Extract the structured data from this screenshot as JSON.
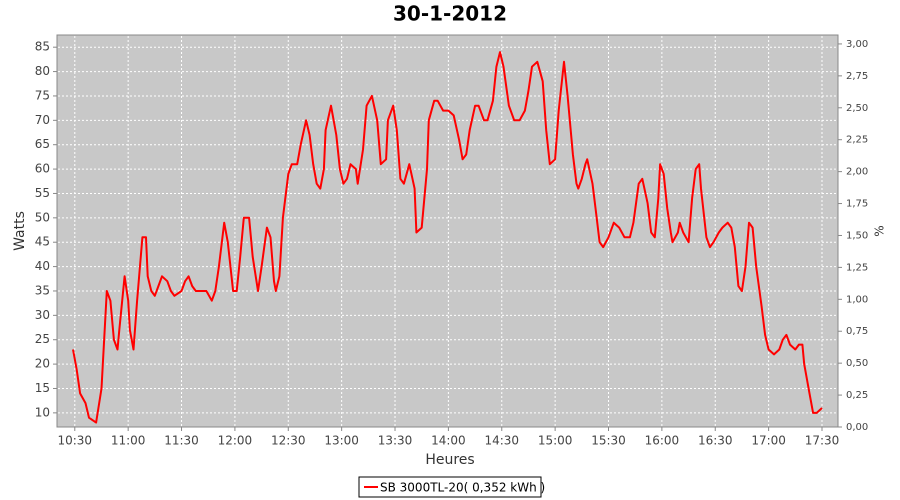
{
  "chart_data": {
    "type": "line",
    "title": "30-1-2012",
    "x_label": "Heures",
    "y_label": "Watts",
    "y2_label": "%",
    "x": [
      "10:29",
      "10:31",
      "10:33",
      "10:36",
      "10:38",
      "10:42",
      "10:45",
      "10:48",
      "10:50",
      "10:52",
      "10:54",
      "10:55",
      "10:58",
      "11:00",
      "11:01",
      "11:03",
      "11:05",
      "11:08",
      "11:10",
      "11:11",
      "11:13",
      "11:15",
      "11:17",
      "11:19",
      "11:22",
      "11:24",
      "11:26",
      "11:30",
      "11:32",
      "11:34",
      "11:36",
      "11:38",
      "11:41",
      "11:44",
      "11:47",
      "11:49",
      "11:51",
      "11:54",
      "11:56",
      "11:59",
      "12:01",
      "12:03",
      "12:05",
      "12:08",
      "12:10",
      "12:13",
      "12:15",
      "12:18",
      "12:20",
      "12:22",
      "12:23",
      "12:25",
      "12:27",
      "12:30",
      "12:32",
      "12:35",
      "12:37",
      "12:40",
      "12:42",
      "12:44",
      "12:46",
      "12:48",
      "12:50",
      "12:51",
      "12:54",
      "12:57",
      "12:59",
      "13:01",
      "13:03",
      "13:05",
      "13:08",
      "13:09",
      "13:12",
      "13:14",
      "13:17",
      "13:20",
      "13:22",
      "13:25",
      "13:26",
      "13:29",
      "13:31",
      "13:33",
      "13:35",
      "13:38",
      "13:41",
      "13:42",
      "13:45",
      "13:48",
      "13:49",
      "13:52",
      "13:54",
      "13:57",
      "14:00",
      "14:03",
      "14:06",
      "14:08",
      "14:10",
      "14:12",
      "14:15",
      "14:17",
      "14:20",
      "14:22",
      "14:25",
      "14:27",
      "14:29",
      "14:31",
      "14:34",
      "14:37",
      "14:40",
      "14:43",
      "14:45",
      "14:47",
      "14:50",
      "14:53",
      "14:55",
      "14:57",
      "15:00",
      "15:02",
      "15:05",
      "15:07",
      "15:10",
      "15:12",
      "15:13",
      "15:15",
      "15:17",
      "15:18",
      "15:21",
      "15:23",
      "15:25",
      "15:27",
      "15:30",
      "15:33",
      "15:36",
      "15:39",
      "15:42",
      "15:44",
      "15:47",
      "15:49",
      "15:52",
      "15:54",
      "15:56",
      "15:58",
      "15:59",
      "16:01",
      "16:03",
      "16:05",
      "16:06",
      "16:09",
      "16:10",
      "16:12",
      "16:15",
      "16:17",
      "16:19",
      "16:21",
      "16:22",
      "16:25",
      "16:27",
      "16:29",
      "16:32",
      "16:34",
      "16:37",
      "16:39",
      "16:41",
      "16:43",
      "16:45",
      "16:47",
      "16:49",
      "16:51",
      "16:53",
      "16:56",
      "16:58",
      "17:00",
      "17:03",
      "17:06",
      "17:08",
      "17:10",
      "17:12",
      "17:15",
      "17:17",
      "17:19",
      "17:20",
      "17:23",
      "17:25",
      "17:27",
      "17:30"
    ],
    "series": [
      {
        "name": "SB 3000TL-20( 0,352 kWh )",
        "color": "#ff0000",
        "values": [
          23,
          19,
          14,
          12,
          9,
          8,
          15,
          35,
          33,
          25,
          23,
          27,
          38,
          33,
          27,
          23,
          33,
          46,
          46,
          38,
          35,
          34,
          36,
          38,
          37,
          35,
          34,
          35,
          37,
          38,
          36,
          35,
          35,
          35,
          33,
          35,
          40,
          49,
          45,
          35,
          35,
          42,
          50,
          50,
          42,
          35,
          40,
          48,
          46,
          37,
          35,
          38,
          50,
          59,
          61,
          61,
          65,
          70,
          67,
          61,
          57,
          56,
          60,
          68,
          73,
          67,
          60,
          57,
          58,
          61,
          60,
          57,
          64,
          73,
          75,
          70,
          61,
          62,
          70,
          73,
          68,
          58,
          57,
          61,
          56,
          47,
          48,
          60,
          70,
          74,
          74,
          72,
          72,
          71,
          66,
          62,
          63,
          68,
          73,
          73,
          70,
          70,
          74,
          81,
          84,
          81,
          73,
          70,
          70,
          72,
          76,
          81,
          82,
          78,
          68,
          61,
          62,
          72,
          82,
          75,
          63,
          57,
          56,
          58,
          61,
          62,
          57,
          51,
          45,
          44,
          46,
          49,
          48,
          46,
          46,
          49,
          57,
          58,
          53,
          47,
          46,
          54,
          61,
          59,
          52,
          47,
          45,
          47,
          49,
          47,
          45,
          54,
          60,
          61,
          56,
          46,
          44,
          45,
          47,
          48,
          49,
          48,
          44,
          36,
          35,
          40,
          49,
          48,
          40,
          32,
          26,
          23,
          22,
          23,
          25,
          26,
          24,
          23,
          24,
          24,
          20,
          14,
          10,
          10,
          11
        ]
      }
    ],
    "xlim": [
      "10:20",
      "17:39"
    ],
    "xticks": [
      "10:30",
      "11:00",
      "11:30",
      "12:00",
      "12:30",
      "13:00",
      "13:30",
      "14:00",
      "14:30",
      "15:00",
      "15:30",
      "16:00",
      "16:30",
      "17:00",
      "17:30"
    ],
    "ylim": [
      7.1,
      87.5
    ],
    "yticks": [
      10,
      15,
      20,
      25,
      30,
      35,
      40,
      45,
      50,
      55,
      60,
      65,
      70,
      75,
      80,
      85
    ],
    "y2lim": [
      0,
      3.07
    ],
    "y2ticks": [
      {
        "value": 0,
        "label": "0,00"
      },
      {
        "value": 0.25,
        "label": "0,25"
      },
      {
        "value": 0.5,
        "label": "0,50"
      },
      {
        "value": 0.75,
        "label": "0,75"
      },
      {
        "value": 1,
        "label": "1,00"
      },
      {
        "value": 1.25,
        "label": "1,25"
      },
      {
        "value": 1.5,
        "label": "1,50"
      },
      {
        "value": 1.75,
        "label": "1,75"
      },
      {
        "value": 2,
        "label": "2,00"
      },
      {
        "value": 2.25,
        "label": "2,25"
      },
      {
        "value": 2.5,
        "label": "2,50"
      },
      {
        "value": 2.75,
        "label": "2,75"
      },
      {
        "value": 3,
        "label": "3,00"
      }
    ],
    "grid": true,
    "legend": "bottom"
  }
}
